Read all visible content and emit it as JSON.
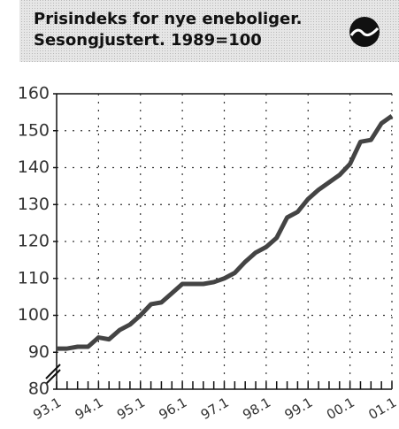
{
  "chart_data": {
    "type": "line",
    "title": "Prisindeks for nye eneboliger.",
    "subtitle": "Sesongjustert. 1989=100",
    "categories": [
      "93.1",
      null,
      null,
      null,
      "94.1",
      null,
      null,
      null,
      "95.1",
      null,
      null,
      null,
      "96.1",
      null,
      null,
      null,
      "97.1",
      null,
      null,
      null,
      "98.1",
      null,
      null,
      null,
      "99.1",
      null,
      null,
      null,
      "00.1",
      null,
      null,
      null,
      "01.1"
    ],
    "series": [
      {
        "color": "#444444",
        "values": [
          91,
          91,
          91.5,
          91.5,
          94,
          93.5,
          96,
          97.5,
          100,
          103,
          103.5,
          106,
          108.5,
          108.5,
          108.5,
          109,
          110,
          111.5,
          114.5,
          117,
          118.5,
          121,
          126.5,
          128,
          131.5,
          134,
          136,
          138,
          141,
          147,
          147.5,
          152,
          154
        ]
      }
    ],
    "ylim": [
      80,
      160
    ],
    "yticks": [
      80,
      90,
      100,
      110,
      120,
      130,
      140,
      150,
      160
    ],
    "grid": true
  }
}
